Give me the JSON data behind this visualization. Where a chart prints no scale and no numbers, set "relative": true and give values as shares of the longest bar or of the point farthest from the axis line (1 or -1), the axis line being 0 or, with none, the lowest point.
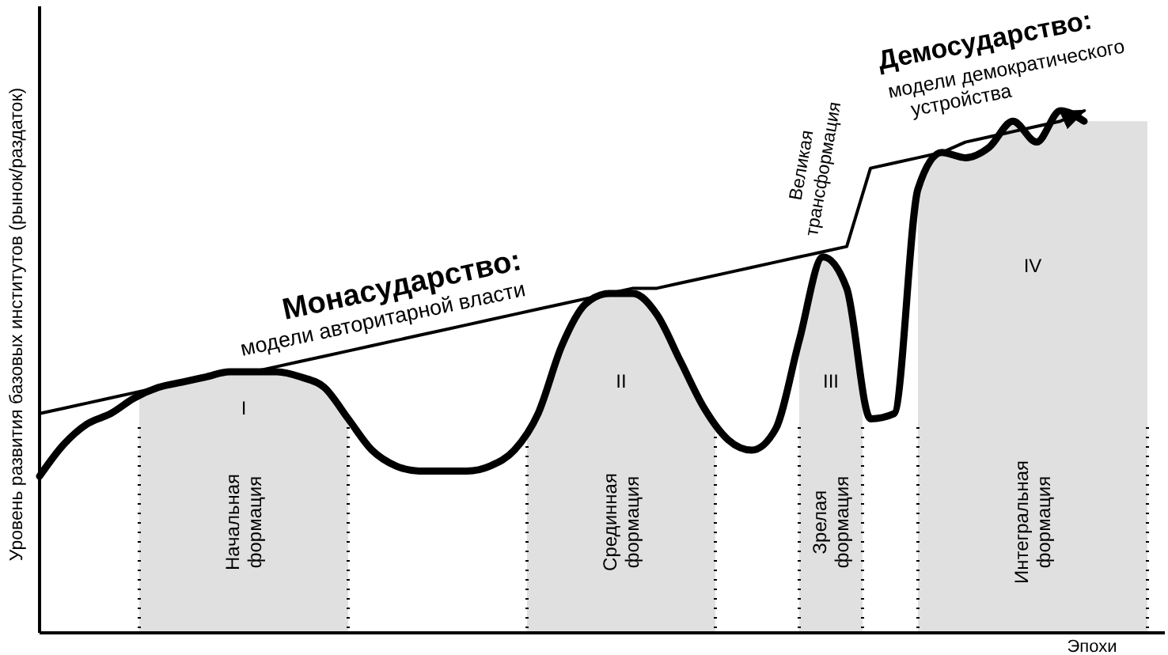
{
  "chart_data": {
    "type": "line",
    "relative": true,
    "xlabel": "Эпохи",
    "ylabel": "Уровень развития базовых институтов (рынок/раздаток)",
    "categories": [
      null,
      null,
      null,
      null,
      null,
      null,
      null,
      null,
      null,
      null,
      null,
      null,
      null,
      null,
      null,
      null,
      null,
      null,
      null,
      null,
      null,
      null,
      null,
      null,
      null,
      null,
      null,
      null,
      null,
      null,
      null,
      null,
      null,
      null,
      null,
      null,
      null,
      null,
      null,
      null,
      null,
      null,
      null,
      null,
      null,
      null,
      null,
      null
    ],
    "series": [
      {
        "color": "#000000",
        "values": [
          0.3,
          0.36,
          0.4,
          0.42,
          0.45,
          0.47,
          0.48,
          0.49,
          0.5,
          0.5,
          0.5,
          0.49,
          0.47,
          0.41,
          0.35,
          0.32,
          0.31,
          0.31,
          0.31,
          0.32,
          0.35,
          0.42,
          0.55,
          0.63,
          0.65,
          0.65,
          0.61,
          0.52,
          0.43,
          0.37,
          0.35,
          0.39,
          0.56,
          0.72,
          0.66,
          0.41,
          0.42,
          0.85,
          0.92,
          0.91,
          0.93,
          0.98,
          0.94,
          1.0,
          0.98,
          null,
          null,
          null
        ]
      },
      {
        "color": "#000000",
        "values": [
          0.42,
          0.43,
          0.44,
          0.45,
          0.46,
          0.47,
          0.48,
          0.49,
          0.5,
          0.5,
          0.51,
          0.52,
          0.53,
          0.54,
          0.55,
          0.56,
          0.57,
          0.58,
          0.59,
          0.6,
          0.61,
          0.62,
          0.63,
          0.64,
          0.65,
          0.66,
          0.66,
          0.67,
          0.68,
          0.69,
          0.7,
          0.71,
          0.72,
          0.73,
          0.74,
          0.89,
          0.9,
          0.91,
          0.92,
          0.94,
          0.95,
          0.96,
          0.97,
          0.98,
          1.0,
          null,
          null,
          null
        ]
      }
    ],
    "annotations": [
      "I",
      "II",
      "III",
      "IV",
      "Монасударство:",
      "модели авторитарной власти",
      "Великая трансформация",
      "Демосударство:",
      "модели демократического устройства",
      "Начальная формация",
      "Срединная формация",
      "Зрелая формация",
      "Интегральная формация"
    ]
  }
}
